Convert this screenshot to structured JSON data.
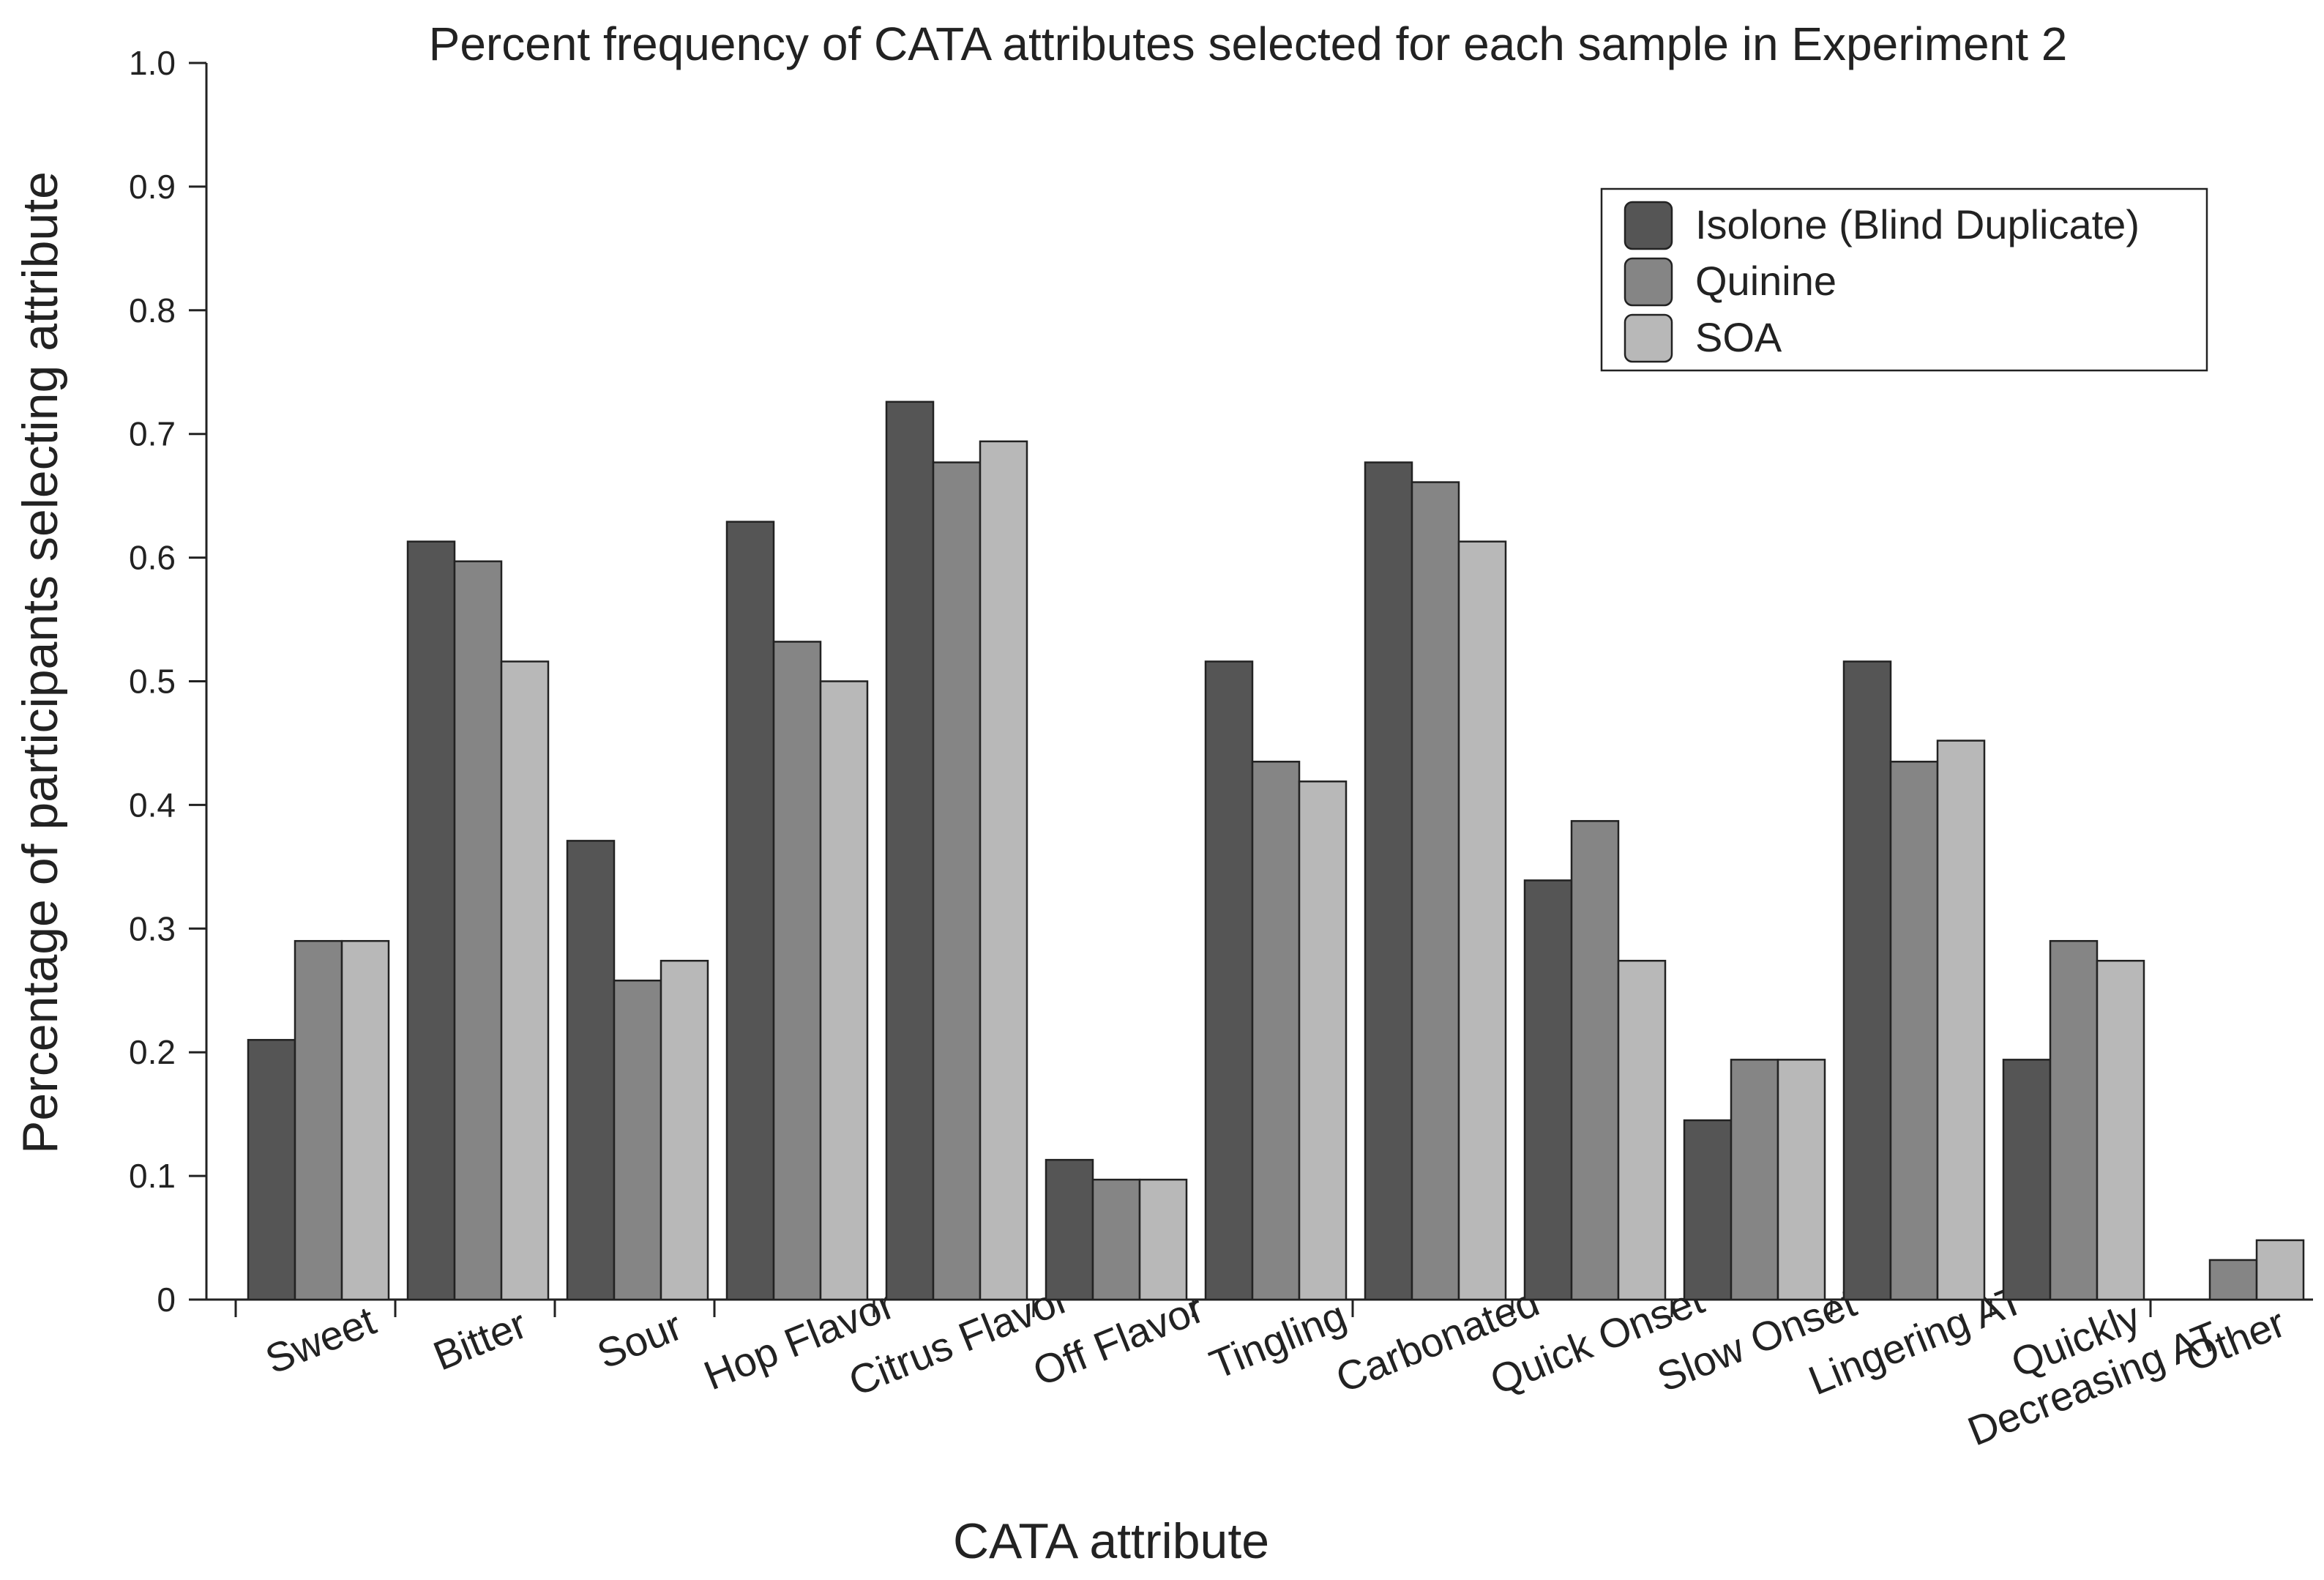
{
  "chart_data": {
    "type": "bar",
    "title": "Percent frequency of CATA attributes selected for each sample in Experiment 2",
    "xlabel": "CATA attribute",
    "ylabel": "Percentage of participants selecting attribute",
    "ylim": [
      0,
      1.0
    ],
    "yticks": [
      "0",
      "0.1",
      "0.2",
      "0.3",
      "0.4",
      "0.5",
      "0.6",
      "0.7",
      "0.8",
      "0.9",
      "1.0"
    ],
    "grid": false,
    "legend_position": "top-right",
    "categories": [
      [
        "Sweet"
      ],
      [
        "Bitter"
      ],
      [
        "Sour"
      ],
      [
        "Hop Flavor"
      ],
      [
        "Citrus Flavor"
      ],
      [
        "Off Flavor"
      ],
      [
        "Tingling"
      ],
      [
        "Carbonated"
      ],
      [
        "Quick Onset"
      ],
      [
        "Slow Onset"
      ],
      [
        "Lingering AT"
      ],
      [
        "Quickly",
        "Decreasing AT"
      ],
      [
        "Other"
      ]
    ],
    "series": [
      {
        "name": "Isolone (Blind Duplicate)",
        "color": "#555555",
        "values": [
          0.21,
          0.613,
          0.371,
          0.629,
          0.726,
          0.113,
          0.516,
          0.677,
          0.339,
          0.145,
          0.516,
          0.194,
          0
        ]
      },
      {
        "name": "Quinine",
        "color": "#858585",
        "values": [
          0.29,
          0.597,
          0.258,
          0.532,
          0.677,
          0.097,
          0.435,
          0.661,
          0.387,
          0.194,
          0.435,
          0.29,
          0.032
        ]
      },
      {
        "name": "SOA",
        "color": "#b8b8b8",
        "values": [
          0.29,
          0.516,
          0.274,
          0.5,
          0.694,
          0.097,
          0.419,
          0.613,
          0.274,
          0.194,
          0.452,
          0.274,
          0.048
        ]
      }
    ]
  }
}
